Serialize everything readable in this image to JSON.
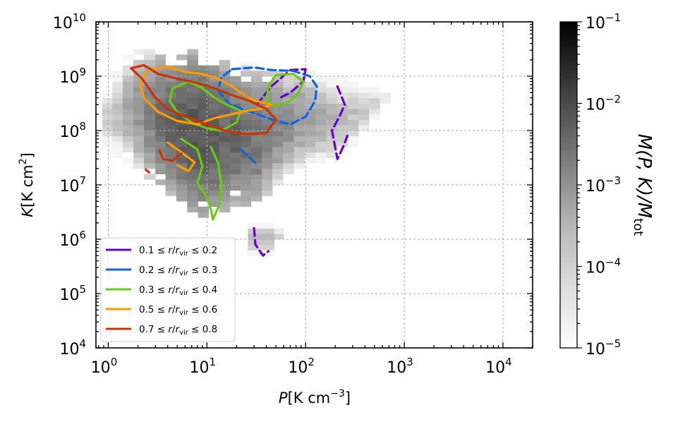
{
  "chart_data": {
    "type": "heatmap",
    "title": "",
    "xlabel": {
      "var": "P",
      "unit": "[K cm",
      "exp": "−3",
      "close": "]"
    },
    "ylabel": {
      "var": "K",
      "unit": "[K cm",
      "exp": "2",
      "close": "]"
    },
    "xscale": "log",
    "yscale": "log",
    "xlim": [
      0.75,
      20000
    ],
    "ylim": [
      10000,
      10000000000
    ],
    "grid": true,
    "legend_position": "lower-left",
    "xticks": [
      {
        "value": 1,
        "base": "10",
        "exp": "0"
      },
      {
        "value": 10,
        "base": "10",
        "exp": "1"
      },
      {
        "value": 100,
        "base": "10",
        "exp": "2"
      },
      {
        "value": 1000,
        "base": "10",
        "exp": "3"
      },
      {
        "value": 10000,
        "base": "10",
        "exp": "4"
      }
    ],
    "yticks": [
      {
        "value": 10000,
        "base": "10",
        "exp": "4"
      },
      {
        "value": 100000,
        "base": "10",
        "exp": "5"
      },
      {
        "value": 1000000,
        "base": "10",
        "exp": "6"
      },
      {
        "value": 10000000,
        "base": "10",
        "exp": "7"
      },
      {
        "value": 100000000,
        "base": "10",
        "exp": "8"
      },
      {
        "value": 1000000000,
        "base": "10",
        "exp": "9"
      },
      {
        "value": 10000000000,
        "base": "10",
        "exp": "10"
      }
    ],
    "colorbar": {
      "label": "M(P, K)/M",
      "label_sub": "tot",
      "scale": "log",
      "range": [
        1e-05,
        0.1
      ],
      "colormap": [
        "#ffffff",
        "#000000"
      ],
      "ticks": [
        {
          "value": 1e-05,
          "base": "10",
          "exp": "−5"
        },
        {
          "value": 0.0001,
          "base": "10",
          "exp": "−4"
        },
        {
          "value": 0.001,
          "base": "10",
          "exp": "−3"
        },
        {
          "value": 0.01,
          "base": "10",
          "exp": "−2"
        },
        {
          "value": 0.1,
          "base": "10",
          "exp": "−1"
        }
      ]
    },
    "series": [
      {
        "name": "0.1 ≤ r/r_vir ≤ 0.2",
        "color": "#6a00c8",
        "legend": {
          "lo": "0.1",
          "hi": "0.2"
        },
        "contours": [
          {
            "style": "dashed",
            "points": [
              [
                32,
                300000000.0
              ],
              [
                45,
                650000000.0
              ],
              [
                70,
                1300000000.0
              ],
              [
                100,
                1350000000.0
              ],
              [
                95,
                800000000.0
              ],
              [
                70,
                500000000.0
              ],
              [
                55,
                400000000.0
              ]
            ]
          },
          {
            "style": "dashed",
            "points": [
              [
                210,
                650000000.0
              ],
              [
                250,
                300000000.0
              ],
              [
                220,
                180000000.0
              ],
              [
                185,
                100000000.0
              ],
              [
                210,
                30000000.0
              ],
              [
                240,
                50000000.0
              ],
              [
                265,
                80000000.0
              ]
            ]
          },
          {
            "style": "dashed",
            "points": [
              [
                30,
                1600000.0
              ],
              [
                31,
                800000.0
              ],
              [
                37,
                500000.0
              ],
              [
                42,
                600000.0
              ]
            ]
          }
        ]
      },
      {
        "name": "0.2 ≤ r/r_vir ≤ 0.3",
        "color": "#0a64e6",
        "legend": {
          "lo": "0.2",
          "hi": "0.3"
        },
        "contours": [
          {
            "style": "dashed",
            "points": [
              [
                18,
                1350000000.0
              ],
              [
                30,
                1450000000.0
              ],
              [
                45,
                1300000000.0
              ],
              [
                75,
                1250000000.0
              ],
              [
                110,
                1000000000.0
              ],
              [
                130,
                650000000.0
              ],
              [
                125,
                350000000.0
              ],
              [
                100,
                180000000.0
              ],
              [
                70,
                130000000.0
              ],
              [
                45,
                160000000.0
              ],
              [
                30,
                210000000.0
              ],
              [
                17,
                300000000.0
              ],
              [
                13,
                550000000.0
              ],
              [
                14,
                950000000.0
              ],
              [
                18,
                1350000000.0
              ]
            ]
          },
          {
            "style": "dashed",
            "points": [
              [
                22,
                45000000.0
              ],
              [
                27,
                32000000.0
              ],
              [
                32,
                24000000.0
              ]
            ]
          }
        ]
      },
      {
        "name": "0.3 ≤ r/r_vir ≤ 0.4",
        "color": "#6cc814",
        "legend": {
          "lo": "0.3",
          "hi": "0.4"
        },
        "contours": [
          {
            "style": "solid",
            "points": [
              [
                4.5,
                600000000.0
              ],
              [
                6.5,
                800000000.0
              ],
              [
                9,
                600000000.0
              ],
              [
                12,
                400000000.0
              ],
              [
                16,
                300000000.0
              ],
              [
                22,
                230000000.0
              ],
              [
                20,
                140000000.0
              ],
              [
                14,
                100000000.0
              ],
              [
                10,
                110000000.0
              ],
              [
                7,
                140000000.0
              ],
              [
                5,
                220000000.0
              ],
              [
                4.2,
                350000000.0
              ],
              [
                4.5,
                600000000.0
              ]
            ]
          },
          {
            "style": "solid",
            "points": [
              [
                50,
                1050000000.0
              ],
              [
                75,
                1100000000.0
              ],
              [
                95,
                800000000.0
              ],
              [
                85,
                500000000.0
              ],
              [
                70,
                350000000.0
              ],
              [
                50,
                280000000.0
              ],
              [
                40,
                350000000.0
              ],
              [
                42,
                650000000.0
              ],
              [
                50,
                1050000000.0
              ]
            ]
          },
          {
            "style": "solid",
            "points": [
              [
                5.5,
                70000000.0
              ],
              [
                8,
                45000000.0
              ],
              [
                9,
                22000000.0
              ],
              [
                8,
                11000000.0
              ],
              [
                10,
                6000000.0
              ],
              [
                11,
                3500000.0
              ],
              [
                11.5,
                2300000.0
              ],
              [
                13.5,
                4500000.0
              ],
              [
                14,
                10000000.0
              ],
              [
                13,
                25000000.0
              ],
              [
                11,
                50000000.0
              ]
            ]
          }
        ]
      },
      {
        "name": "0.5 ≤ r/r_vir ≤ 0.6",
        "color": "#ff9a00",
        "legend": {
          "lo": "0.5",
          "hi": "0.6"
        },
        "contours": [
          {
            "style": "solid",
            "points": [
              [
                2.5,
                1300000000.0
              ],
              [
                4,
                1500000000.0
              ],
              [
                6,
                1200000000.0
              ],
              [
                9,
                1100000000.0
              ],
              [
                13,
                900000000.0
              ],
              [
                17,
                700000000.0
              ],
              [
                22,
                500000000.0
              ],
              [
                30,
                360000000.0
              ],
              [
                45,
                300000000.0
              ],
              [
                35,
                250000000.0
              ],
              [
                25,
                230000000.0
              ],
              [
                18,
                200000000.0
              ],
              [
                12,
                170000000.0
              ],
              [
                8,
                130000000.0
              ],
              [
                5,
                150000000.0
              ],
              [
                3.2,
                220000000.0
              ],
              [
                2.3,
                400000000.0
              ],
              [
                2.1,
                700000000.0
              ],
              [
                2.5,
                1300000000.0
              ]
            ]
          },
          {
            "style": "solid",
            "points": [
              [
                4,
                60000000.0
              ],
              [
                5.5,
                40000000.0
              ],
              [
                7.5,
                26000000.0
              ],
              [
                6.5,
                18000000.0
              ],
              [
                5,
                23000000.0
              ]
            ]
          }
        ]
      },
      {
        "name": "0.7 ≤ r/r_vir ≤ 0.8",
        "color": "#cc3300",
        "legend": {
          "lo": "0.7",
          "hi": "0.8"
        },
        "contours": [
          {
            "style": "solid",
            "points": [
              [
                1.7,
                1400000000.0
              ],
              [
                2.3,
                1600000000.0
              ],
              [
                3.2,
                1100000000.0
              ],
              [
                5,
                900000000.0
              ],
              [
                8,
                750000000.0
              ],
              [
                12,
                600000000.0
              ],
              [
                18,
                450000000.0
              ],
              [
                27,
                350000000.0
              ],
              [
                40,
                250000000.0
              ],
              [
                50,
                160000000.0
              ],
              [
                40,
                90000000.0
              ],
              [
                25,
                85000000.0
              ],
              [
                15,
                100000000.0
              ],
              [
                10,
                130000000.0
              ],
              [
                6,
                180000000.0
              ],
              [
                4,
                250000000.0
              ],
              [
                3,
                400000000.0
              ],
              [
                2.5,
                650000000.0
              ],
              [
                2.2,
                900000000.0
              ],
              [
                1.7,
                1400000000.0
              ]
            ]
          },
          {
            "style": "solid",
            "points": [
              [
                3.3,
                43000000.0
              ],
              [
                3.6,
                30000000.0
              ],
              [
                4.5,
                28000000.0
              ],
              [
                5.5,
                38000000.0
              ]
            ]
          },
          {
            "style": "solid",
            "points": [
              [
                2.4,
                19000000.0
              ],
              [
                2.6,
                17000000.0
              ]
            ]
          }
        ]
      }
    ],
    "histogram_columns": [
      {
        "x0": 0.87,
        "x1": 1.1,
        "y0": 50000000.0,
        "y1": 600000000.0,
        "mass": 5e-05
      },
      {
        "x0": 1.1,
        "x1": 1.4,
        "y0": 30000000.0,
        "y1": 1300000000.0,
        "mass": 8e-05
      },
      {
        "x0": 1.4,
        "x1": 1.8,
        "y0": 25000000.0,
        "y1": 2500000000.0,
        "mass": 0.0002
      },
      {
        "x0": 1.8,
        "x1": 2.3,
        "y0": 18000000.0,
        "y1": 3000000000.0,
        "mass": 0.0005
      },
      {
        "x0": 2.3,
        "x1": 3.0,
        "y0": 12000000.0,
        "y1": 3000000000.0,
        "mass": 0.001
      },
      {
        "x0": 3.0,
        "x1": 3.8,
        "y0": 8000000.0,
        "y1": 3000000000.0,
        "mass": 0.002
      },
      {
        "x0": 3.8,
        "x1": 4.9,
        "y0": 6000000.0,
        "y1": 3000000000.0,
        "mass": 0.003
      },
      {
        "x0": 4.9,
        "x1": 6.3,
        "y0": 4000000.0,
        "y1": 3000000000.0,
        "mass": 0.004
      },
      {
        "x0": 6.3,
        "x1": 8.1,
        "y0": 3000000.0,
        "y1": 3000000000.0,
        "mass": 0.005
      },
      {
        "x0": 8.1,
        "x1": 10.4,
        "y0": 2300000.0,
        "y1": 3000000000.0,
        "mass": 0.005
      },
      {
        "x0": 10.4,
        "x1": 13.3,
        "y0": 2300000.0,
        "y1": 2500000000.0,
        "mass": 0.004
      },
      {
        "x0": 13.3,
        "x1": 17.1,
        "y0": 3000000.0,
        "y1": 2000000000.0,
        "mass": 0.003
      },
      {
        "x0": 17.1,
        "x1": 22,
        "y0": 4000000.0,
        "y1": 1600000000.0,
        "mass": 0.003
      },
      {
        "x0": 22,
        "x1": 28,
        "y0": 3000000.0,
        "y1": 1500000000.0,
        "mass": 0.002
      },
      {
        "x0": 28,
        "x1": 36,
        "y0": 3000000.0,
        "y1": 1500000000.0,
        "mass": 0.0015
      },
      {
        "x0": 36,
        "x1": 46,
        "y0": 6000000.0,
        "y1": 1500000000.0,
        "mass": 0.001
      },
      {
        "x0": 46,
        "x1": 59,
        "y0": 10000000.0,
        "y1": 1400000000.0,
        "mass": 0.0008
      },
      {
        "x0": 59,
        "x1": 76,
        "y0": 15000000.0,
        "y1": 1200000000.0,
        "mass": 0.0006
      },
      {
        "x0": 76,
        "x1": 98,
        "y0": 20000000.0,
        "y1": 1300000000.0,
        "mass": 0.0004
      },
      {
        "x0": 98,
        "x1": 126,
        "y0": 25000000.0,
        "y1": 1200000000.0,
        "mass": 0.0003
      },
      {
        "x0": 126,
        "x1": 162,
        "y0": 25000000.0,
        "y1": 1000000000.0,
        "mass": 0.0002
      },
      {
        "x0": 162,
        "x1": 208,
        "y0": 25000000.0,
        "y1": 900000000.0,
        "mass": 0.00015
      },
      {
        "x0": 208,
        "x1": 267,
        "y0": 30000000.0,
        "y1": 900000000.0,
        "mass": 0.0001
      },
      {
        "x0": 267,
        "x1": 343,
        "y0": 50000000.0,
        "y1": 800000000.0,
        "mass": 8e-05
      },
      {
        "x0": 343,
        "x1": 440,
        "y0": 80000000.0,
        "y1": 700000000.0,
        "mass": 6e-05
      },
      {
        "x0": 440,
        "x1": 565,
        "y0": 150000000.0,
        "y1": 600000000.0,
        "mass": 4e-05
      },
      {
        "x0": 565,
        "x1": 726,
        "y0": 300000000.0,
        "y1": 500000000.0,
        "mass": 3e-05
      },
      {
        "x0": 26,
        "x1": 48,
        "y0": 500000.0,
        "y1": 2000000.0,
        "mass": 0.0001
      },
      {
        "x0": 48,
        "x1": 60,
        "y0": 900000.0,
        "y1": 1600000.0,
        "mass": 4e-05
      }
    ]
  }
}
